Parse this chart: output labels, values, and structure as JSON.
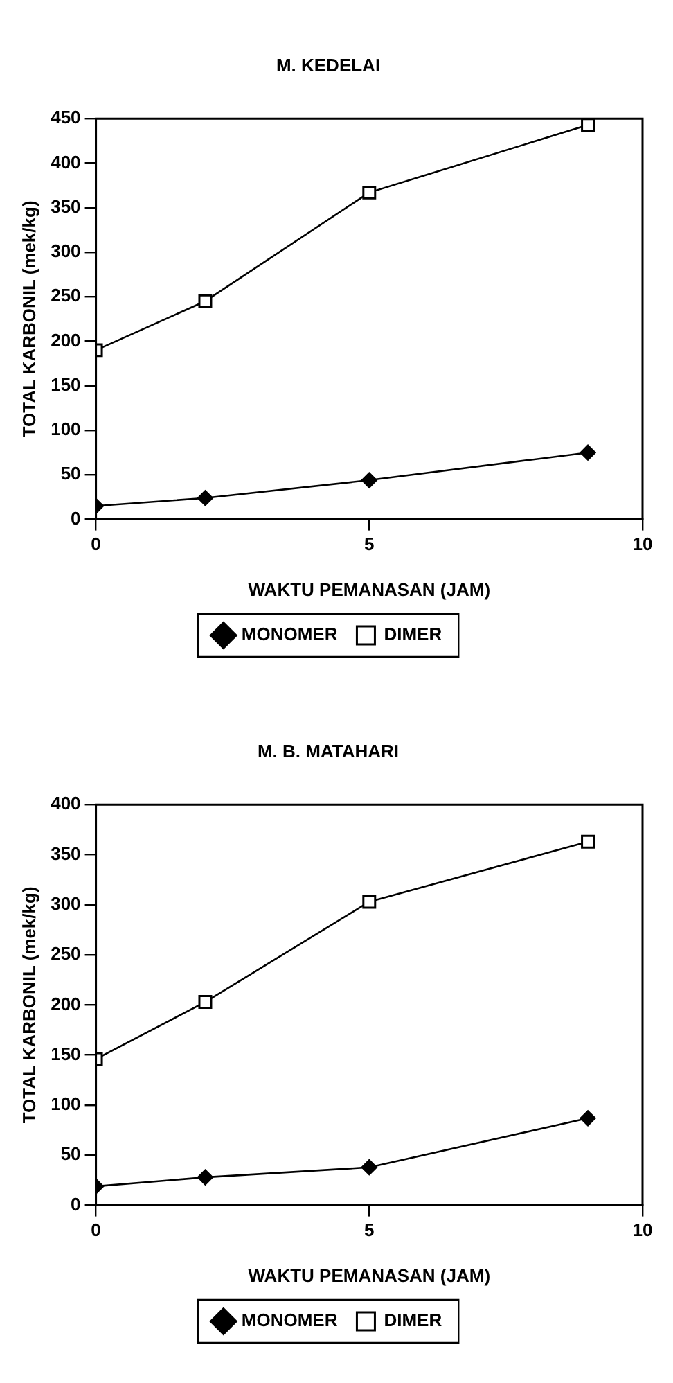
{
  "chart_data": [
    {
      "type": "line",
      "title": "M. KEDELAI",
      "xlabel": "WAKTU PEMANASAN (JAM)",
      "ylabel": "TOTAL KARBONIL (mek/kg)",
      "x": [
        0,
        2,
        5,
        9
      ],
      "series": [
        {
          "name": "MONOMER",
          "color": "#000000",
          "marker": "diamond",
          "values": [
            15,
            24,
            44,
            75
          ]
        },
        {
          "name": "DIMER",
          "color": "#000000",
          "marker": "square",
          "values": [
            190,
            245,
            367,
            443
          ]
        }
      ],
      "xlim": [
        0,
        10
      ],
      "xticks": [
        0,
        5,
        10
      ],
      "ylim": [
        0,
        450
      ],
      "yticks": [
        0,
        50,
        100,
        150,
        200,
        250,
        300,
        350,
        400,
        450
      ],
      "grid": false,
      "legend": "bottom",
      "line_style": "solid"
    },
    {
      "type": "line",
      "title": "M. B. MATAHARI",
      "xlabel": "WAKTU PEMANASAN (JAM)",
      "ylabel": "TOTAL KARBONIL (mek/kg)",
      "x": [
        0,
        2,
        5,
        9
      ],
      "series": [
        {
          "name": "MONOMER",
          "color": "#000000",
          "marker": "diamond",
          "values": [
            19,
            28,
            38,
            87
          ]
        },
        {
          "name": "DIMER",
          "color": "#000000",
          "marker": "square",
          "values": [
            146,
            203,
            303,
            363
          ]
        }
      ],
      "xlim": [
        0,
        10
      ],
      "xticks": [
        0,
        5,
        10
      ],
      "ylim": [
        0,
        400
      ],
      "yticks": [
        0,
        50,
        100,
        150,
        200,
        250,
        300,
        350,
        400
      ],
      "grid": false,
      "legend": "bottom",
      "line_style": "solid"
    }
  ]
}
